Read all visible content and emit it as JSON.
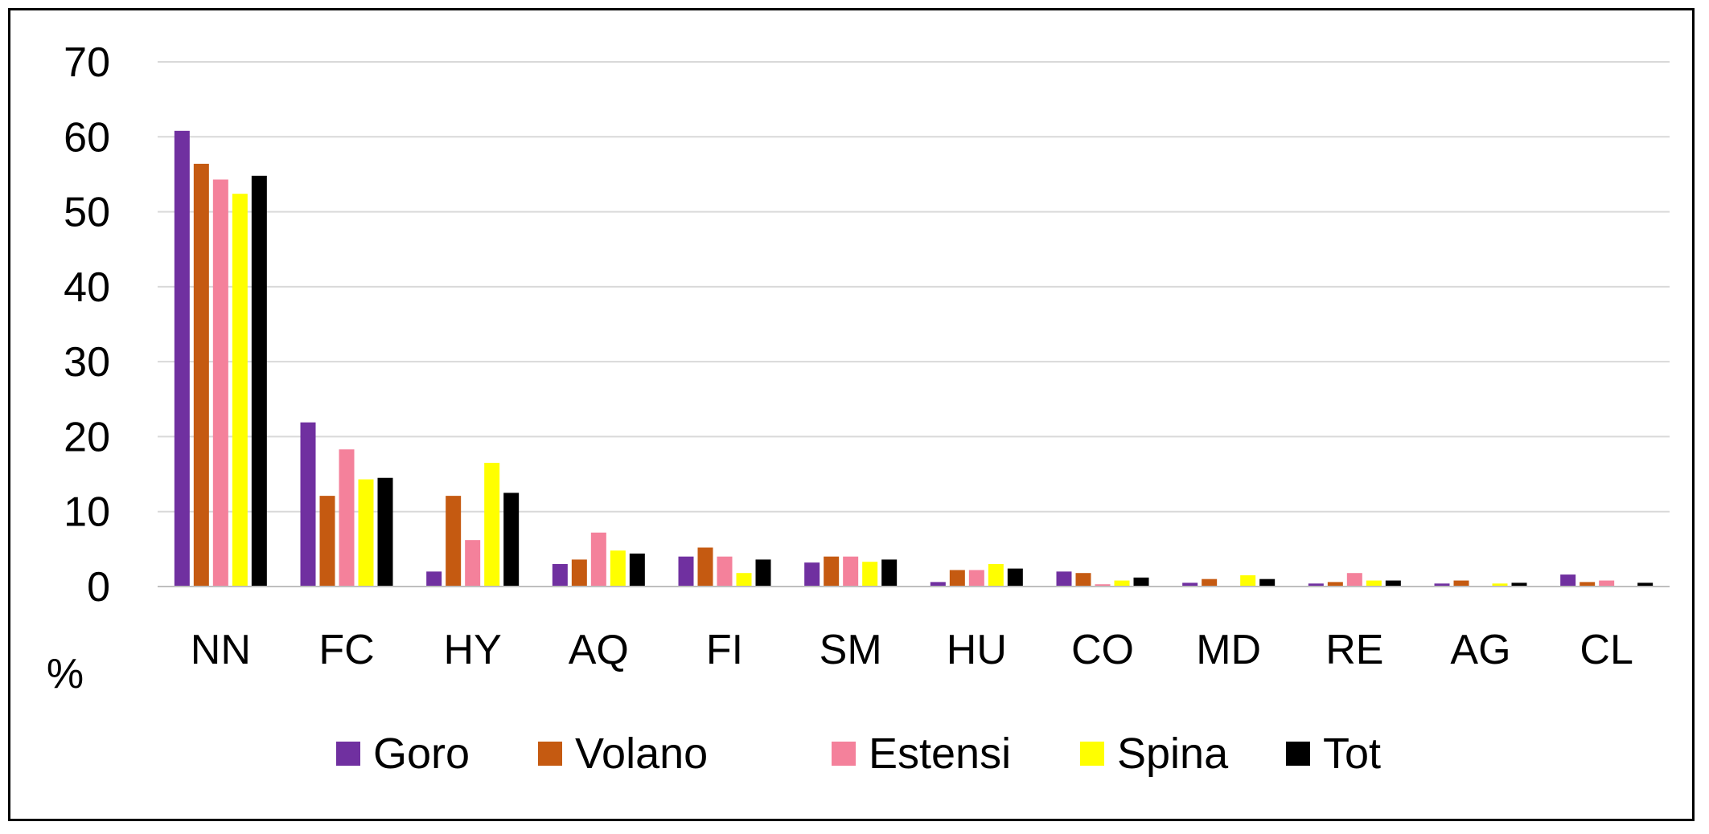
{
  "chart_data": {
    "type": "bar",
    "ylabel": "%",
    "ylim": [
      0,
      70
    ],
    "yticks": [
      0,
      10,
      20,
      30,
      40,
      50,
      60,
      70
    ],
    "grid": true,
    "legend_position": "bottom",
    "categories": [
      "NN",
      "FC",
      "HY",
      "AQ",
      "FI",
      "SM",
      "HU",
      "CO",
      "MD",
      "RE",
      "AG",
      "CL"
    ],
    "series": [
      {
        "name": "Goro",
        "color": "#7030A0",
        "values": [
          60.8,
          21.9,
          2.0,
          3.0,
          4.0,
          3.2,
          0.6,
          2.0,
          0.5,
          0.4,
          0.4,
          1.6
        ]
      },
      {
        "name": "Volano",
        "color": "#C55A11",
        "values": [
          56.4,
          12.1,
          12.1,
          3.6,
          5.2,
          4.0,
          2.2,
          1.8,
          1.0,
          0.6,
          0.8,
          0.6
        ]
      },
      {
        "name": "Estensi",
        "color": "#F4819B",
        "values": [
          54.3,
          18.3,
          6.2,
          7.2,
          4.0,
          4.0,
          2.2,
          0.3,
          0.1,
          1.8,
          0.1,
          0.8
        ]
      },
      {
        "name": "Spina",
        "color": "#FFFF00",
        "values": [
          52.4,
          14.3,
          16.5,
          4.8,
          1.8,
          3.3,
          3.0,
          0.8,
          1.5,
          0.8,
          0.4,
          0.1
        ]
      },
      {
        "name": "Tot",
        "color": "#000000",
        "values": [
          54.8,
          14.5,
          12.5,
          4.4,
          3.6,
          3.6,
          2.4,
          1.2,
          1.0,
          0.8,
          0.5,
          0.5
        ]
      }
    ]
  }
}
